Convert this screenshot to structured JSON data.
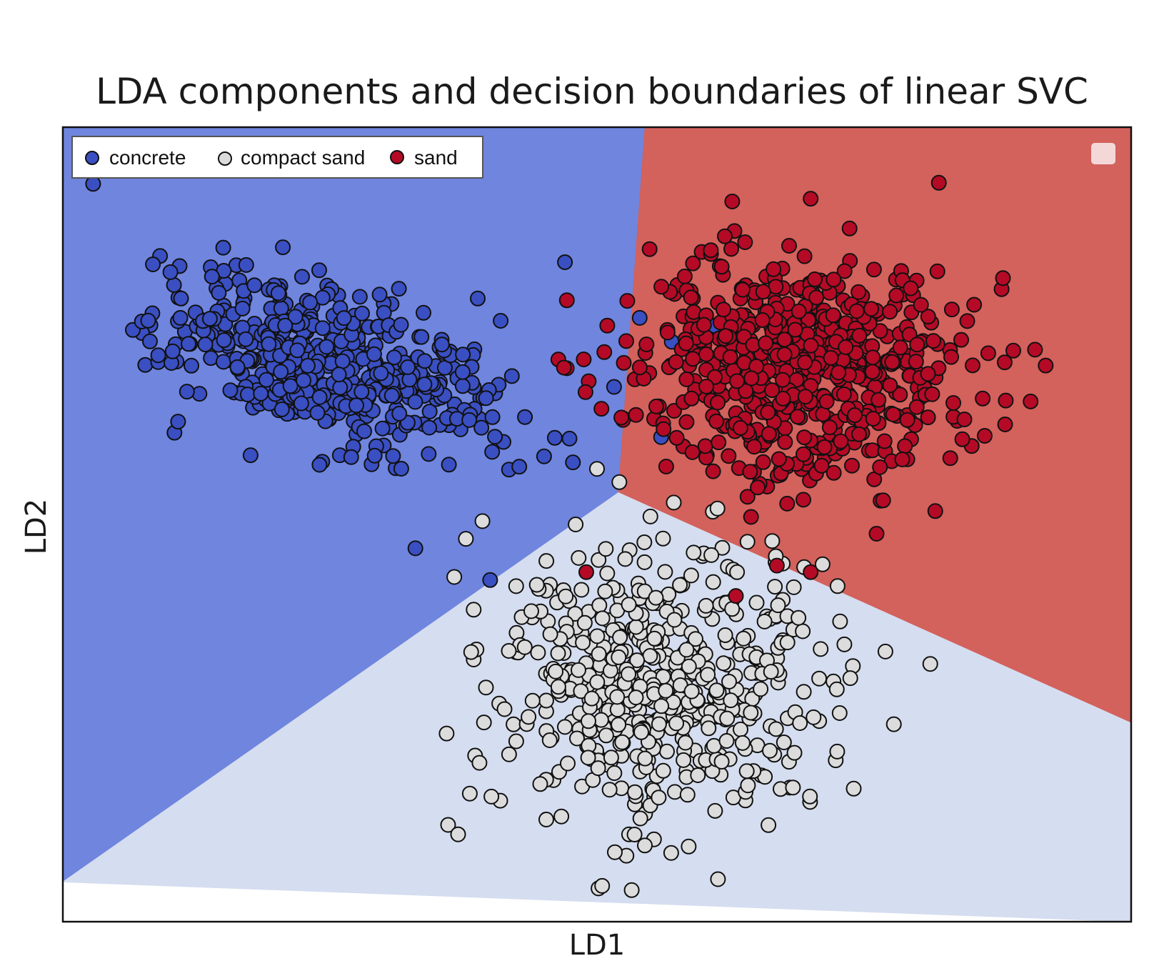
{
  "chart_data": {
    "type": "scatter",
    "title": "LDA components and decision boundaries of linear SVC",
    "xlabel": "LD1",
    "ylabel": "LD2",
    "xlim": [
      0,
      1
    ],
    "ylim": [
      0,
      1
    ],
    "ticks": "none",
    "grid": false,
    "legend_placement": "upper-left",
    "legend": [
      "concrete",
      "compact sand",
      "sand"
    ],
    "series": [
      {
        "name": "concrete",
        "color": "#3a4fc2",
        "cluster": {
          "center": [
            0.25,
            0.7
          ],
          "spread": [
            0.075,
            0.055
          ],
          "count": 520,
          "corr": -0.45
        },
        "points": [
          [
            0.47,
            0.83
          ],
          [
            0.57,
            0.73
          ],
          [
            0.54,
            0.76
          ],
          [
            0.61,
            0.75
          ],
          [
            0.56,
            0.61
          ],
          [
            0.4,
            0.43
          ],
          [
            0.33,
            0.47
          ],
          [
            0.24,
            0.82
          ],
          [
            0.11,
            0.76
          ]
        ]
      },
      {
        "name": "compact sand",
        "color": "#dcdcdc",
        "cluster": {
          "center": [
            0.56,
            0.3
          ],
          "spread": [
            0.075,
            0.09
          ],
          "count": 560,
          "corr": 0.0
        },
        "points": [
          [
            0.37,
            0.11
          ],
          [
            0.39,
            0.2
          ],
          [
            0.77,
            0.34
          ],
          [
            0.69,
            0.25
          ],
          [
            0.5,
            0.57
          ],
          [
            0.48,
            0.5
          ],
          [
            0.55,
            0.51
          ]
        ]
      },
      {
        "name": "sand",
        "color": "#b40a26",
        "cluster": {
          "center": [
            0.69,
            0.7
          ],
          "spread": [
            0.08,
            0.07
          ],
          "count": 640,
          "corr": 0.0
        },
        "points": [
          [
            0.82,
            0.93
          ],
          [
            0.7,
            0.91
          ],
          [
            0.92,
            0.7
          ],
          [
            0.91,
            0.72
          ],
          [
            0.88,
            0.81
          ],
          [
            0.7,
            0.44
          ],
          [
            0.49,
            0.44
          ],
          [
            0.63,
            0.41
          ]
        ]
      }
    ],
    "regions": [
      {
        "name": "concrete",
        "color": "#6f85de",
        "polygon": [
          [
            0,
            1
          ],
          [
            0.545,
            1
          ],
          [
            0.52,
            0.54
          ],
          [
            0,
            0.05
          ]
        ]
      },
      {
        "name": "sand",
        "color": "#d3615c",
        "polygon": [
          [
            0.545,
            1
          ],
          [
            1,
            1
          ],
          [
            1,
            0.25
          ],
          [
            0.52,
            0.54
          ]
        ]
      },
      {
        "name": "compact sand",
        "color": "#d5ddf0",
        "polygon": [
          [
            0,
            0.05
          ],
          [
            0.52,
            0.54
          ],
          [
            1,
            0.25
          ],
          [
            1,
            0
          ]
        ]
      }
    ]
  }
}
